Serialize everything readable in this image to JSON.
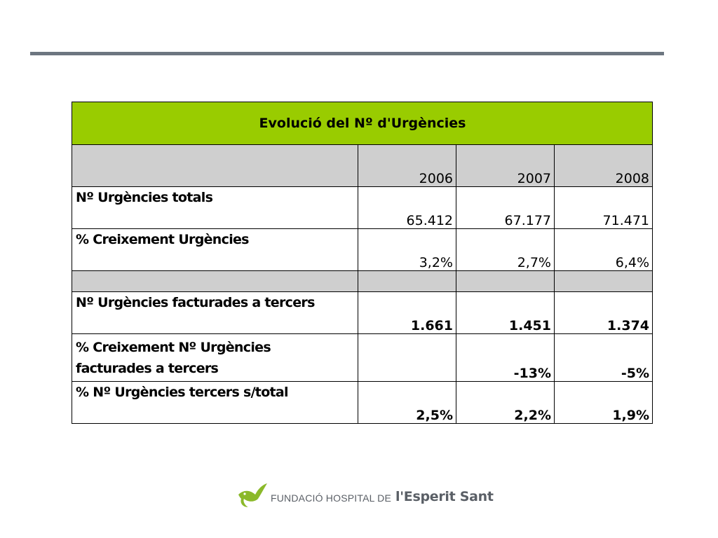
{
  "table": {
    "title": "Evolució del Nº d'Urgències",
    "years": [
      "2006",
      "2007",
      "2008"
    ],
    "rows": [
      {
        "label": "Nº Urgències totals",
        "values": [
          "65.412",
          "67.177",
          "71.471"
        ]
      },
      {
        "label": "% Creixement Urgències",
        "values": [
          "3,2%",
          "2,7%",
          "6,4%"
        ]
      },
      {
        "label": "Nº Urgències facturades a tercers",
        "values": [
          "1.661",
          "1.451",
          "1.374"
        ]
      },
      {
        "label_line1": "% Creixement Nº Urgències",
        "label_line2": "facturades a tercers",
        "values": [
          "",
          "-13%",
          "-5%"
        ]
      },
      {
        "label": "% Nº Urgències tercers s/total",
        "values": [
          "2,5%",
          "2,2%",
          "1,9%"
        ]
      }
    ]
  },
  "logo": {
    "small_text": "FUNDACIÓ HOSPITAL DE",
    "big_text": "l'Esperit Sant",
    "colors": {
      "bird": "#8bb92a",
      "text": "#5a5f66"
    }
  },
  "colors": {
    "title_background": "#99cc00",
    "header_background": "#cfcfcf",
    "rule": "#6d7680"
  }
}
